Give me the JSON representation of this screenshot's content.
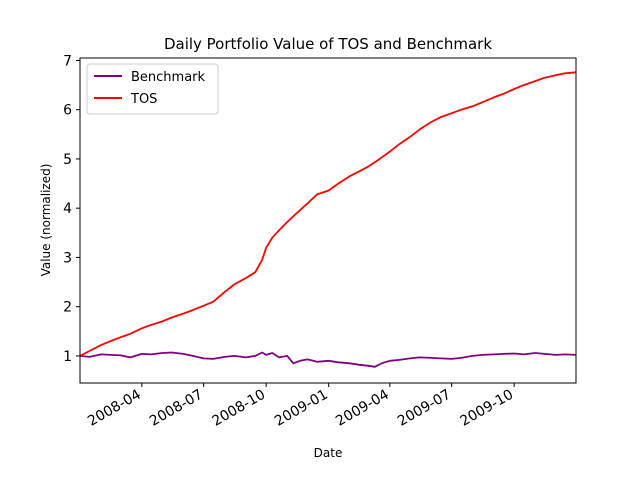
{
  "chart_data": {
    "type": "line",
    "title": "Daily Portfolio Value of TOS and Benchmark",
    "xlabel": "Date",
    "ylabel": "Value (normalized)",
    "xlim": [
      "2008-01-01",
      "2009-12-31"
    ],
    "ylim": [
      0.45,
      7.05
    ],
    "x_ticks": [
      "2008-04",
      "2008-07",
      "2008-10",
      "2009-01",
      "2009-04",
      "2009-07",
      "2009-10"
    ],
    "y_ticks": [
      1,
      2,
      3,
      4,
      5,
      6,
      7
    ],
    "legend": "top-left",
    "grid": false,
    "series": [
      {
        "name": "Benchmark",
        "color": "#800080",
        "points": [
          [
            "2008-01-01",
            1.0
          ],
          [
            "2008-01-15",
            0.98
          ],
          [
            "2008-02-01",
            1.03
          ],
          [
            "2008-02-15",
            1.02
          ],
          [
            "2008-03-01",
            1.01
          ],
          [
            "2008-03-15",
            0.97
          ],
          [
            "2008-04-01",
            1.04
          ],
          [
            "2008-04-15",
            1.03
          ],
          [
            "2008-05-01",
            1.06
          ],
          [
            "2008-05-15",
            1.07
          ],
          [
            "2008-06-01",
            1.04
          ],
          [
            "2008-06-15",
            1.0
          ],
          [
            "2008-07-01",
            0.95
          ],
          [
            "2008-07-15",
            0.94
          ],
          [
            "2008-08-01",
            0.98
          ],
          [
            "2008-08-15",
            1.0
          ],
          [
            "2008-09-01",
            0.97
          ],
          [
            "2008-09-15",
            1.0
          ],
          [
            "2008-09-25",
            1.07
          ],
          [
            "2008-10-01",
            1.02
          ],
          [
            "2008-10-10",
            1.06
          ],
          [
            "2008-10-20",
            0.97
          ],
          [
            "2008-11-01",
            1.0
          ],
          [
            "2008-11-10",
            0.85
          ],
          [
            "2008-11-20",
            0.9
          ],
          [
            "2008-12-01",
            0.93
          ],
          [
            "2008-12-15",
            0.88
          ],
          [
            "2009-01-01",
            0.9
          ],
          [
            "2009-01-15",
            0.87
          ],
          [
            "2009-02-01",
            0.85
          ],
          [
            "2009-02-15",
            0.82
          ],
          [
            "2009-03-01",
            0.8
          ],
          [
            "2009-03-10",
            0.78
          ],
          [
            "2009-03-20",
            0.85
          ],
          [
            "2009-04-01",
            0.9
          ],
          [
            "2009-04-15",
            0.92
          ],
          [
            "2009-05-01",
            0.95
          ],
          [
            "2009-05-15",
            0.97
          ],
          [
            "2009-06-01",
            0.96
          ],
          [
            "2009-06-15",
            0.95
          ],
          [
            "2009-07-01",
            0.94
          ],
          [
            "2009-07-15",
            0.96
          ],
          [
            "2009-08-01",
            1.0
          ],
          [
            "2009-08-15",
            1.02
          ],
          [
            "2009-09-01",
            1.03
          ],
          [
            "2009-09-15",
            1.04
          ],
          [
            "2009-10-01",
            1.05
          ],
          [
            "2009-10-15",
            1.03
          ],
          [
            "2009-11-01",
            1.06
          ],
          [
            "2009-11-15",
            1.04
          ],
          [
            "2009-12-01",
            1.02
          ],
          [
            "2009-12-15",
            1.03
          ],
          [
            "2009-12-31",
            1.02
          ]
        ]
      },
      {
        "name": "TOS",
        "color": "#ff0000",
        "points": [
          [
            "2008-01-01",
            1.0
          ],
          [
            "2008-01-15",
            1.1
          ],
          [
            "2008-02-01",
            1.22
          ],
          [
            "2008-02-15",
            1.3
          ],
          [
            "2008-03-01",
            1.38
          ],
          [
            "2008-03-15",
            1.45
          ],
          [
            "2008-04-01",
            1.56
          ],
          [
            "2008-04-15",
            1.63
          ],
          [
            "2008-05-01",
            1.7
          ],
          [
            "2008-05-15",
            1.78
          ],
          [
            "2008-06-01",
            1.86
          ],
          [
            "2008-06-15",
            1.93
          ],
          [
            "2008-07-01",
            2.02
          ],
          [
            "2008-07-15",
            2.1
          ],
          [
            "2008-08-01",
            2.3
          ],
          [
            "2008-08-15",
            2.45
          ],
          [
            "2008-09-01",
            2.58
          ],
          [
            "2008-09-15",
            2.7
          ],
          [
            "2008-09-25",
            2.95
          ],
          [
            "2008-10-01",
            3.2
          ],
          [
            "2008-10-10",
            3.4
          ],
          [
            "2008-10-20",
            3.55
          ],
          [
            "2008-11-01",
            3.72
          ],
          [
            "2008-11-15",
            3.9
          ],
          [
            "2008-12-01",
            4.1
          ],
          [
            "2008-12-15",
            4.28
          ],
          [
            "2009-01-01",
            4.36
          ],
          [
            "2009-01-15",
            4.5
          ],
          [
            "2009-02-01",
            4.65
          ],
          [
            "2009-02-15",
            4.75
          ],
          [
            "2009-03-01",
            4.85
          ],
          [
            "2009-03-15",
            4.98
          ],
          [
            "2009-04-01",
            5.15
          ],
          [
            "2009-04-15",
            5.3
          ],
          [
            "2009-05-01",
            5.45
          ],
          [
            "2009-05-15",
            5.6
          ],
          [
            "2009-06-01",
            5.75
          ],
          [
            "2009-06-15",
            5.85
          ],
          [
            "2009-07-01",
            5.93
          ],
          [
            "2009-07-15",
            6.0
          ],
          [
            "2009-08-01",
            6.07
          ],
          [
            "2009-08-15",
            6.15
          ],
          [
            "2009-09-01",
            6.25
          ],
          [
            "2009-09-15",
            6.32
          ],
          [
            "2009-10-01",
            6.42
          ],
          [
            "2009-10-15",
            6.5
          ],
          [
            "2009-11-01",
            6.58
          ],
          [
            "2009-11-15",
            6.65
          ],
          [
            "2009-12-01",
            6.7
          ],
          [
            "2009-12-15",
            6.74
          ],
          [
            "2009-12-31",
            6.76
          ]
        ]
      }
    ]
  }
}
